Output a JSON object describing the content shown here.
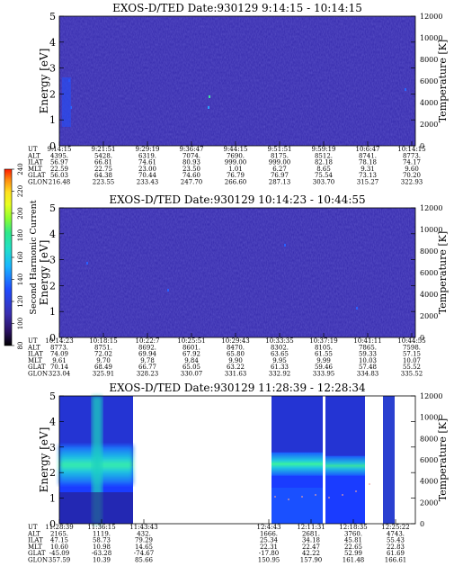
{
  "colorbar": {
    "label": "Second Harmonic Current",
    "ticks": [
      "80",
      "100",
      "120",
      "140",
      "160",
      "180",
      "200",
      "220",
      "240"
    ]
  },
  "colors": {
    "background": "#ffffff",
    "plot_bg": "#3a2fb0",
    "text": "#000000"
  },
  "chart_data": [
    {
      "type": "heatmap",
      "title": "EXOS-D/TED   Date:930129   9:14:15 - 10:14:15",
      "ylabel": "Energy [eV]",
      "ylabel_right": "Temperature [K]",
      "y_ticks": [
        "0",
        "1",
        "2",
        "3",
        "4",
        "5"
      ],
      "y2_ticks": [
        "0",
        "2000",
        "4000",
        "6000",
        "8000",
        "10000",
        "12000"
      ],
      "ylim": [
        0,
        5
      ],
      "y2lim": [
        0,
        12000
      ],
      "row_labels": [
        "UT",
        "ALT",
        "ILAT",
        "MLT",
        "GLAT",
        "GLON"
      ],
      "columns": [
        [
          "9:14:15",
          "4395.",
          "56.97",
          "22.59",
          "56.03",
          "216.48"
        ],
        [
          "9:21:51",
          "5428.",
          "66.81",
          "22.75",
          "64.38",
          "223.55"
        ],
        [
          "9:29:19",
          "6319.",
          "74.61",
          "23.00",
          "70.44",
          "233.43"
        ],
        [
          "9:36:47",
          "7074.",
          "80.93",
          "23.50",
          "74.60",
          "247.70"
        ],
        [
          "9:44:15",
          "7690.",
          "999.00",
          "1.01",
          "76.79",
          "266.60"
        ],
        [
          "9:51:51",
          "8175.",
          "999.00",
          "6.27",
          "76.97",
          "287.13"
        ],
        [
          "9:59:19",
          "8512.",
          "82.18",
          "8.65",
          "75.54",
          "303.70"
        ],
        [
          "10:6:47",
          "8741.",
          "78.18",
          "9.31",
          "73.13",
          "315.27"
        ],
        [
          "10:14:15",
          "8773.",
          "74.17",
          "9.60",
          "70.20",
          "322.93"
        ]
      ]
    },
    {
      "type": "heatmap",
      "title": "EXOS-D/TED   Date:930129   10:14:23 - 10:44:55",
      "ylabel": "Energy [eV]",
      "ylabel_right": "Temperature [K]",
      "y_ticks": [
        "0",
        "1",
        "2",
        "3",
        "4",
        "5"
      ],
      "y2_ticks": [
        "0",
        "2000",
        "4000",
        "6000",
        "8000",
        "10000",
        "12000"
      ],
      "ylim": [
        0,
        5
      ],
      "y2lim": [
        0,
        12000
      ],
      "row_labels": [
        "UT",
        "ALT",
        "ILAT",
        "MLT",
        "GLAT",
        "GLON"
      ],
      "columns": [
        [
          "10:14:23",
          "8773.",
          "74.09",
          "9.61",
          "70.14",
          "323.04"
        ],
        [
          "10:18:15",
          "8751.",
          "72.02",
          "9.70",
          "68.49",
          "325.91"
        ],
        [
          "10:22:7",
          "8692.",
          "69.94",
          "9.78",
          "66.77",
          "328.23"
        ],
        [
          "10:25:51",
          "8601.",
          "67.92",
          "9.84",
          "65.05",
          "330.07"
        ],
        [
          "10:29:43",
          "8470.",
          "65.80",
          "9.90",
          "63.22",
          "331.63"
        ],
        [
          "10:33:35",
          "8302.",
          "63.65",
          "9.95",
          "61.33",
          "332.92"
        ],
        [
          "10:37:19",
          "8105.",
          "61.55",
          "9.99",
          "59.46",
          "333.95"
        ],
        [
          "10:41:11",
          "7865.",
          "59.33",
          "10.03",
          "57.48",
          "334.83"
        ],
        [
          "10:44:55",
          "7598.",
          "57.15",
          "10.07",
          "55.52",
          "335.52"
        ]
      ]
    },
    {
      "type": "heatmap",
      "title": "EXOS-D/TED   Date:930129   11:28:39 - 12:28:34",
      "ylabel": "Energy [eV]",
      "ylabel_right": "Temperature [K]",
      "y_ticks": [
        "0",
        "1",
        "2",
        "3",
        "4",
        "5"
      ],
      "y2_ticks": [
        "0",
        "2000",
        "4000",
        "6000",
        "8000",
        "10000",
        "12000"
      ],
      "ylim": [
        0,
        5
      ],
      "y2lim": [
        0,
        12000
      ],
      "row_labels": [
        "UT",
        "ALT",
        "ILAT",
        "MLT",
        "GLAT",
        "GLON"
      ],
      "columns": [
        [
          "11:28:39",
          "2165.",
          "47.15",
          "10.60",
          "-45.09",
          "357.59"
        ],
        [
          "11:36:15",
          "1119.",
          "58.73",
          "10.98",
          "-63.28",
          "10.39"
        ],
        [
          "11:43:43",
          "432.",
          "79.29",
          "14.65",
          "-74.67",
          "85.66"
        ],
        [
          "12:4:43",
          "1666.",
          "25.34",
          "22.31",
          "-17.80",
          "150.95"
        ],
        [
          "12:11:31",
          "2681.",
          "34.18",
          "22.47",
          "42.22",
          "157.90"
        ],
        [
          "12:18:35",
          "3760.",
          "45.81",
          "22.65",
          "52.99",
          "161.48"
        ],
        [
          "12:25:22",
          "4743.",
          "55.43",
          "22.83",
          "61.69",
          "166.61"
        ]
      ]
    }
  ]
}
